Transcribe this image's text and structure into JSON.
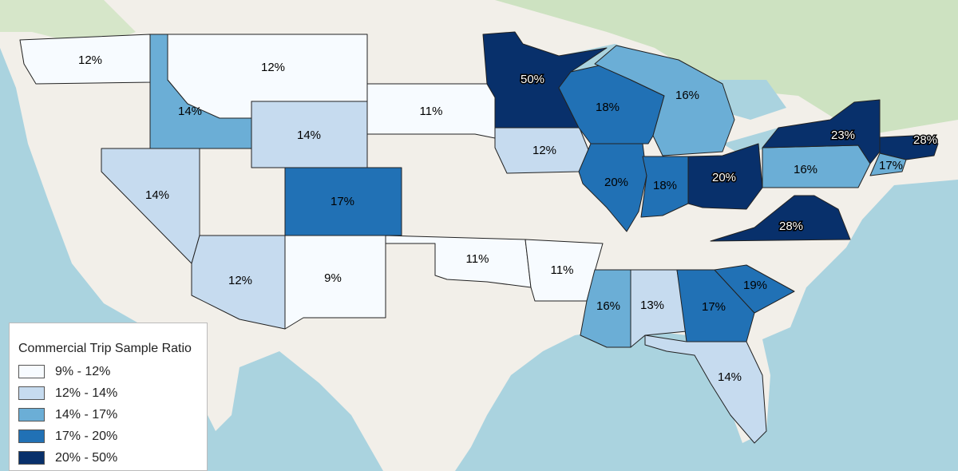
{
  "map": {
    "legend": {
      "title": "Commercial Trip Sample Ratio",
      "classes": [
        {
          "label": "9% - 12%",
          "color": "#f7fbff"
        },
        {
          "label": "12% - 14%",
          "color": "#c6dbef"
        },
        {
          "label": "14% - 17%",
          "color": "#6baed6"
        },
        {
          "label": "17% - 20%",
          "color": "#2171b5"
        },
        {
          "label": "20% - 50%",
          "color": "#08306b"
        }
      ]
    },
    "states": {
      "WA": {
        "label": "12%",
        "class": 0
      },
      "ID": {
        "label": "14%",
        "class": 2
      },
      "MT": {
        "label": "12%",
        "class": 0
      },
      "WY": {
        "label": "14%",
        "class": 1
      },
      "NV": {
        "label": "14%",
        "class": 1
      },
      "CO": {
        "label": "17%",
        "class": 3
      },
      "AZ": {
        "label": "12%",
        "class": 1
      },
      "NM": {
        "label": "9%",
        "class": 0
      },
      "SD": {
        "label": "11%",
        "class": 0
      },
      "IA": {
        "label": "12%",
        "class": 1
      },
      "OK": {
        "label": "11%",
        "class": 0
      },
      "AR": {
        "label": "11%",
        "class": 0
      },
      "MN": {
        "label": "50%",
        "class": 4
      },
      "WI": {
        "label": "18%",
        "class": 3
      },
      "MI": {
        "label": "16%",
        "class": 2
      },
      "IL": {
        "label": "20%",
        "class": 3
      },
      "IN": {
        "label": "18%",
        "class": 3
      },
      "OH": {
        "label": "20%",
        "class": 4
      },
      "NY": {
        "label": "23%",
        "class": 4
      },
      "PA": {
        "label": "16%",
        "class": 2
      },
      "MA": {
        "label": "28%",
        "class": 4
      },
      "CT": {
        "label": "17%",
        "class": 2
      },
      "VA": {
        "label": "28%",
        "class": 4
      },
      "MS": {
        "label": "16%",
        "class": 2
      },
      "AL": {
        "label": "13%",
        "class": 1
      },
      "GA": {
        "label": "17%",
        "class": 3
      },
      "SC": {
        "label": "19%",
        "class": 3
      },
      "FL": {
        "label": "14%",
        "class": 1
      }
    }
  }
}
